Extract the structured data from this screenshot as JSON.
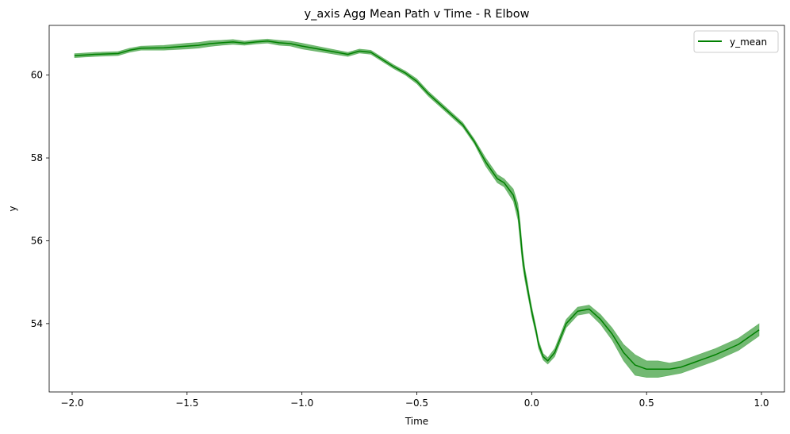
{
  "chart_data": {
    "type": "line",
    "title": "y_axis Agg Mean Path v Time - R Elbow",
    "xlabel": "Time",
    "ylabel": "y",
    "xlim": [
      -2.1,
      1.1
    ],
    "ylim": [
      52.35,
      61.2
    ],
    "xticks": [
      -2.0,
      -1.5,
      -1.0,
      -0.5,
      0.0,
      0.5,
      1.0
    ],
    "xtick_labels": [
      "−2.0",
      "−1.5",
      "−1.0",
      "−0.5",
      "0.0",
      "0.5",
      "1.0"
    ],
    "yticks": [
      54,
      56,
      58,
      60
    ],
    "ytick_labels": [
      "54",
      "56",
      "58",
      "60"
    ],
    "grid": false,
    "legend": {
      "position": "top-right",
      "entries": [
        "y_mean"
      ]
    },
    "colors": {
      "line": "#008000",
      "band": "#008000"
    },
    "series": [
      {
        "name": "y_mean",
        "x": [
          -1.99,
          -1.9,
          -1.8,
          -1.75,
          -1.7,
          -1.6,
          -1.5,
          -1.45,
          -1.4,
          -1.35,
          -1.3,
          -1.25,
          -1.2,
          -1.15,
          -1.1,
          -1.05,
          -1.0,
          -0.9,
          -0.8,
          -0.75,
          -0.7,
          -0.6,
          -0.55,
          -0.5,
          -0.45,
          -0.4,
          -0.3,
          -0.25,
          -0.2,
          -0.15,
          -0.12,
          -0.08,
          -0.06,
          -0.05,
          -0.04,
          -0.03,
          -0.02,
          -0.01,
          0.0,
          0.02,
          0.03,
          0.05,
          0.07,
          0.1,
          0.15,
          0.2,
          0.25,
          0.3,
          0.35,
          0.4,
          0.45,
          0.5,
          0.55,
          0.6,
          0.65,
          0.7,
          0.8,
          0.9,
          0.99
        ],
        "values": [
          60.47,
          60.5,
          60.52,
          60.6,
          60.65,
          60.66,
          60.7,
          60.72,
          60.76,
          60.78,
          60.8,
          60.77,
          60.8,
          60.82,
          60.78,
          60.76,
          60.7,
          60.6,
          60.5,
          60.58,
          60.55,
          60.2,
          60.05,
          59.85,
          59.55,
          59.3,
          58.8,
          58.4,
          57.9,
          57.5,
          57.4,
          57.1,
          56.7,
          56.2,
          55.6,
          55.2,
          54.9,
          54.6,
          54.3,
          53.8,
          53.5,
          53.2,
          53.1,
          53.3,
          54.0,
          54.3,
          54.35,
          54.1,
          53.75,
          53.3,
          53.0,
          52.9,
          52.9,
          52.9,
          52.95,
          53.05,
          53.25,
          53.5,
          53.85
        ],
        "band_width": [
          0.05,
          0.05,
          0.05,
          0.05,
          0.05,
          0.06,
          0.07,
          0.07,
          0.07,
          0.06,
          0.06,
          0.05,
          0.05,
          0.05,
          0.06,
          0.06,
          0.07,
          0.06,
          0.05,
          0.05,
          0.05,
          0.05,
          0.05,
          0.06,
          0.06,
          0.06,
          0.06,
          0.06,
          0.1,
          0.1,
          0.1,
          0.15,
          0.2,
          0.25,
          0.2,
          0.15,
          0.15,
          0.12,
          0.12,
          0.1,
          0.1,
          0.08,
          0.08,
          0.1,
          0.1,
          0.1,
          0.1,
          0.12,
          0.15,
          0.2,
          0.25,
          0.2,
          0.2,
          0.15,
          0.15,
          0.15,
          0.15,
          0.15,
          0.15
        ]
      }
    ]
  }
}
